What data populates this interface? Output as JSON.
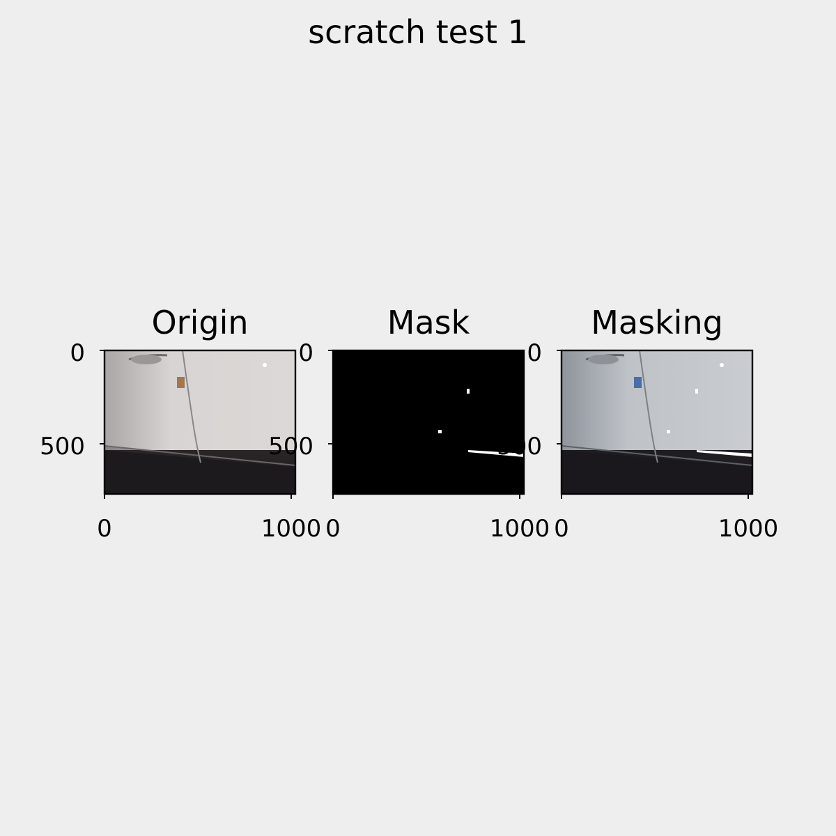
{
  "figure": {
    "suptitle": "scratch test 1",
    "background": "#eeeeee"
  },
  "chart_data": [
    {
      "type": "image",
      "title": "Origin",
      "xlim": [
        0,
        1024
      ],
      "ylim": [
        768,
        0
      ],
      "xticks": [
        0,
        1000
      ],
      "xtick_labels": [
        "0",
        "1000"
      ],
      "yticks": [
        0,
        500
      ],
      "ytick_labels": [
        "0",
        "500"
      ],
      "image_content": "car-door-photo-original"
    },
    {
      "type": "image",
      "title": "Mask",
      "xlim": [
        0,
        1024
      ],
      "ylim": [
        768,
        0
      ],
      "xticks": [
        0,
        1000
      ],
      "xtick_labels": [
        "0",
        "1000"
      ],
      "yticks": [
        0,
        500
      ],
      "ytick_labels": [
        "0",
        "500"
      ],
      "image_content": "binary-scratch-mask"
    },
    {
      "type": "image",
      "title": "Masking",
      "xlim": [
        0,
        1024
      ],
      "ylim": [
        768,
        0
      ],
      "xticks": [
        0,
        1000
      ],
      "xtick_labels": [
        "0",
        "1000"
      ],
      "yticks": [
        0,
        500
      ],
      "ytick_labels": [
        "0",
        "500"
      ],
      "image_content": "car-door-photo-with-mask-overlay"
    }
  ]
}
